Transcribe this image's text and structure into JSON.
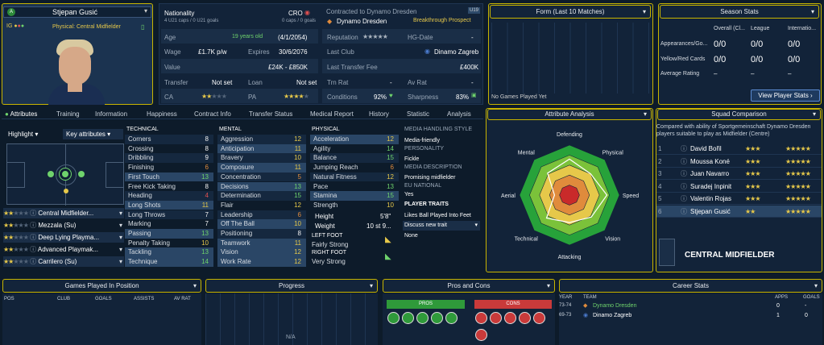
{
  "player": {
    "name": "Stjepan Gusić",
    "position": "Physical: Central Midfielder",
    "badge": "A",
    "ip": "IG"
  },
  "info": {
    "nationality_label": "Nationality",
    "nationality": "CRO",
    "caps": "4 U21 caps / 0 U21 goals",
    "caps2": "0 caps / 0 goals",
    "contracted_label": "Contracted to Dynamo Dresden",
    "club": "Dynamo Dresden",
    "breakthrough": "Breakthrough Prospect",
    "u19": "U19",
    "age_label": "Age",
    "age": "19 years old",
    "dob": "(4/1/2054)",
    "reputation_label": "Reputation",
    "reputation_stars": "★★★★★",
    "hgd_label": "HG-Date",
    "hgd": "-",
    "wage_label": "Wage",
    "wage": "£1.7K p/w",
    "expires_label": "Expires",
    "expires": "30/6/2076",
    "lastclub_label": "Last Club",
    "lastclub": "Dinamo Zagreb",
    "value_label": "Value",
    "value": "£24K - £850K",
    "transferfee_label": "Last Transfer Fee",
    "transferfee": "£400K",
    "transfer_label": "Transfer",
    "transfer": "Not set",
    "loan_label": "Loan",
    "loan": "Not set",
    "trnrat_label": "Trn Rat",
    "trnrat": "-",
    "avrat_label": "Av Rat",
    "avrat": "-",
    "ca_label": "CA",
    "ca_stars": "★★",
    "ca_dim": "★★★",
    "pa_label": "PA",
    "pa_stars": "★★★★",
    "pa_dim": "★",
    "conditions_label": "Conditions",
    "conditions": "92%",
    "sharpness_label": "Sharpness",
    "sharpness": "83%"
  },
  "form": {
    "title": "Form (Last 10 Matches)",
    "empty": "No Games Played Yet"
  },
  "season": {
    "title": "Season Stats",
    "cols": [
      "Overall (Cl...",
      "League",
      "Internatio..."
    ],
    "rows": [
      {
        "label": "Appearances/Go...",
        "vals": [
          "0/0",
          "0/0",
          "0/0"
        ]
      },
      {
        "label": "Yellow/Red Cards",
        "vals": [
          "0/0",
          "0/0",
          "0/0"
        ]
      },
      {
        "label": "Average Rating",
        "vals": [
          "–",
          "–",
          "–"
        ]
      }
    ],
    "button": "View Player Stats"
  },
  "tabs": [
    "Attributes",
    "Training",
    "Information",
    "Happiness",
    "Contract Info",
    "Transfer Status",
    "Medical Report",
    "History",
    "Statistic",
    "Analysis"
  ],
  "controls": {
    "highlight": "Highlight",
    "keyattrs": "Key attributes"
  },
  "roles": [
    {
      "name": "Central Midfielder...",
      "s": "★★",
      "d": "★★★"
    },
    {
      "name": "Mezzala (Su)",
      "s": "★★",
      "d": "★★★"
    },
    {
      "name": "Deep Lying Playma...",
      "s": "★★",
      "d": "★★★"
    },
    {
      "name": "Advanced Playmak...",
      "s": "★★",
      "d": "★★★"
    },
    {
      "name": "Carrilero (Su)",
      "s": "★★",
      "d": "★★★"
    }
  ],
  "technical": {
    "title": "TECHNICAL",
    "items": [
      [
        "Corners",
        "8"
      ],
      [
        "Crossing",
        "8"
      ],
      [
        "Dribbling",
        "9"
      ],
      [
        "Finishing",
        "6"
      ],
      [
        "First Touch",
        "13"
      ],
      [
        "Free Kick Taking",
        "8"
      ],
      [
        "Heading",
        "4"
      ],
      [
        "Long Shots",
        "11"
      ],
      [
        "Long Throws",
        "7"
      ],
      [
        "Marking",
        "7"
      ],
      [
        "Passing",
        "13"
      ],
      [
        "Penalty Taking",
        "10"
      ],
      [
        "Tackling",
        "13"
      ],
      [
        "Technique",
        "14"
      ]
    ]
  },
  "mental": {
    "title": "MENTAL",
    "items": [
      [
        "Aggression",
        "12"
      ],
      [
        "Anticipation",
        "11"
      ],
      [
        "Bravery",
        "10"
      ],
      [
        "Composure",
        "11"
      ],
      [
        "Concentration",
        "5"
      ],
      [
        "Decisions",
        "13"
      ],
      [
        "Determination",
        "15"
      ],
      [
        "Flair",
        "12"
      ],
      [
        "Leadership",
        "6"
      ],
      [
        "Off The Ball",
        "10"
      ],
      [
        "Positioning",
        "8"
      ],
      [
        "Teamwork",
        "11"
      ],
      [
        "Vision",
        "12"
      ],
      [
        "Work Rate",
        "12"
      ]
    ]
  },
  "physical": {
    "title": "PHYSICAL",
    "items": [
      [
        "Acceleration",
        "12"
      ],
      [
        "Agility",
        "14"
      ],
      [
        "Balance",
        "15"
      ],
      [
        "Jumping Reach",
        "6"
      ],
      [
        "Natural Fitness",
        "12"
      ],
      [
        "Pace",
        "13"
      ],
      [
        "Stamina",
        "15"
      ],
      [
        "Strength",
        "10"
      ]
    ],
    "height_label": "Height",
    "height": "5'8\"",
    "weight_label": "Weight",
    "weight": "10 st 9...",
    "leftfoot_label": "LEFT FOOT",
    "leftfoot": "Fairly Strong",
    "rightfoot_label": "RIGHT FOOT",
    "rightfoot": "Very Strong"
  },
  "media": {
    "style_title": "MEDIA HANDLING STYLE",
    "style": "Media-friendly",
    "pers_title": "PERSONALITY",
    "pers": "Fickle",
    "desc_title": "MEDIA DESCRIPTION",
    "desc": "Promising midfielder",
    "eu_title": "EU NATIONAL",
    "eu": "Yes",
    "traits_title": "PLAYER TRAITS",
    "trait1": "Likes Ball Played Into Feet",
    "discuss": "Discuss new trait",
    "none": "None"
  },
  "analysis": {
    "title": "Attribute Analysis",
    "labels": [
      "Defending",
      "Physical",
      "Speed",
      "Vision",
      "Attacking",
      "Technical",
      "Aerial",
      "Mental"
    ],
    "values": [
      0.72,
      0.6,
      0.75,
      0.62,
      0.55,
      0.65,
      0.3,
      0.62
    ]
  },
  "squad": {
    "title": "Squad Comparison",
    "desc": "Compared with ability of Sportgemeinschaft Dynamo Dresden players suitable to play as Midfielder (Centre)",
    "rows": [
      [
        "1",
        "David Bořil",
        "★★★",
        "★★★★★"
      ],
      [
        "2",
        "Moussa Koné",
        "★★★",
        "★★★★★"
      ],
      [
        "3",
        "Juan Navarro",
        "★★★",
        "★★★★★"
      ],
      [
        "4",
        "Suradej Inpinit",
        "★★★",
        "★★★★★"
      ],
      [
        "5",
        "Valentin Rojas",
        "★★★",
        "★★★★★"
      ],
      [
        "6",
        "Stjepan Gusić",
        "★★",
        "★★★★★"
      ]
    ],
    "role": "CENTRAL MIDFIELDER"
  },
  "bottom": {
    "games": "Games Played In Position",
    "games_cols": [
      "POS",
      "CLUB",
      "GOALS",
      "ASSISTS",
      "AV RAT"
    ],
    "progress": "Progress",
    "na": "N/A",
    "proscons": "Pros and Cons",
    "pros": "PROS",
    "cons": "CONS",
    "career": "Career Stats",
    "career_cols": [
      "YEAR",
      "TEAM",
      "APPS",
      "GOALS"
    ],
    "career_rows": [
      [
        "73-74",
        "Dynamo Dresden",
        "0",
        "-"
      ],
      [
        "69-73",
        "Dinamo Zagreb",
        "1",
        "0"
      ]
    ]
  }
}
